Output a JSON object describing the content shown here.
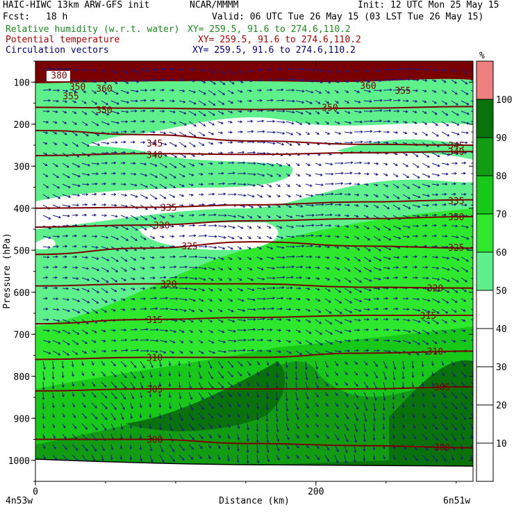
{
  "header": {
    "model": "HAIC-HIWC 13km ARW-GFS init",
    "org": "NCAR/MMMM",
    "init": "Init: 12 UTC Mon 25 May 15",
    "fcst_label": "Fcst:",
    "fcst_value": "18 h",
    "valid": "Valid: 06 UTC Tue 26 May 15 (03 LST Tue 26 May 15)",
    "fields": [
      {
        "name": "Relative humidity (w.r.t. water)",
        "xy": "XY= 259.5, 91.6 to 274.6,110.2",
        "color": "#1a8c1a"
      },
      {
        "name": "Potential temperature",
        "xy": "XY= 259.5, 91.6 to 274.6,110.2",
        "color": "#b00000"
      },
      {
        "name": "Circulation vectors",
        "xy": "XY= 259.5, 91.6 to 274.6,110.2",
        "color": "#000080"
      }
    ]
  },
  "chart_data": {
    "type": "contour",
    "ylabel": "Pressure (hPa)",
    "xlabel": "Distance (km)",
    "x_ticks": [
      "0",
      "200"
    ],
    "x_tick_values": [
      0,
      200
    ],
    "xlim": [
      0,
      312
    ],
    "y_ticks": [
      "100",
      "200",
      "300",
      "400",
      "500",
      "600",
      "700",
      "800",
      "900",
      "1000"
    ],
    "y_tick_values": [
      100,
      200,
      300,
      400,
      500,
      600,
      700,
      800,
      900,
      1000
    ],
    "ylim": [
      50,
      1050
    ],
    "endpoints": {
      "left": "4n53w",
      "right": "6n51w"
    },
    "colorbar": {
      "unit": "%",
      "labels": [
        "10",
        "20",
        "30",
        "40",
        "50",
        "60",
        "70",
        "80",
        "90",
        "100"
      ],
      "levels": [
        10,
        20,
        30,
        40,
        50,
        60,
        70,
        80,
        90,
        100
      ],
      "colors": [
        "#ffffff",
        "#ffffff",
        "#ffffff",
        "#ffffff",
        "#ffffff",
        "#5ef08a",
        "#2ee82e",
        "#18c818",
        "#129c12",
        "#0a720a",
        "#f08080"
      ]
    },
    "theta_contours": [
      {
        "label": "350",
        "pressure": [
          160,
          162,
          165,
          162,
          158
        ],
        "label_at": [
          [
            30,
            110
          ],
          [
            210,
            160
          ]
        ]
      },
      {
        "label": "345",
        "pressure": [
          215,
          225,
          240,
          248,
          250
        ],
        "label_at": [
          [
            85,
            245
          ],
          [
            300,
            250
          ]
        ]
      },
      {
        "label": "340",
        "pressure": [
          275,
          270,
          272,
          268,
          265
        ],
        "label_at": [
          [
            85,
            272
          ],
          [
            300,
            265
          ]
        ]
      },
      {
        "label": "335",
        "pressure": [
          400,
          398,
          392,
          385,
          380
        ],
        "label_at": [
          [
            95,
            398
          ],
          [
            300,
            382
          ]
        ]
      },
      {
        "label": "330",
        "pressure": [
          445,
          440,
          430,
          425,
          420
        ],
        "label_at": [
          [
            90,
            440
          ],
          [
            300,
            420
          ]
        ]
      },
      {
        "label": "325",
        "pressure": [
          510,
          495,
          480,
          490,
          495
        ],
        "label_at": [
          [
            110,
            490
          ],
          [
            300,
            493
          ]
        ]
      },
      {
        "label": "320",
        "pressure": [
          585,
          580,
          580,
          588,
          590
        ],
        "label_at": [
          [
            95,
            580
          ],
          [
            285,
            590
          ]
        ]
      },
      {
        "label": "315",
        "pressure": [
          675,
          665,
          660,
          655,
          655
        ],
        "label_at": [
          [
            85,
            665
          ],
          [
            280,
            655
          ]
        ]
      },
      {
        "label": "310",
        "pressure": [
          760,
          755,
          755,
          745,
          740
        ],
        "label_at": [
          [
            85,
            755
          ],
          [
            285,
            740
          ]
        ]
      },
      {
        "label": "305",
        "pressure": [
          835,
          830,
          830,
          830,
          825
        ],
        "label_at": [
          [
            85,
            830
          ],
          [
            290,
            825
          ]
        ]
      },
      {
        "label": "300",
        "pressure": [
          950,
          950,
          960,
          965,
          970
        ],
        "label_at": [
          [
            85,
            950
          ],
          [
            290,
            968
          ]
        ]
      }
    ],
    "top_labels": [
      "380",
      "360",
      "355",
      "350",
      "360",
      "355"
    ]
  }
}
